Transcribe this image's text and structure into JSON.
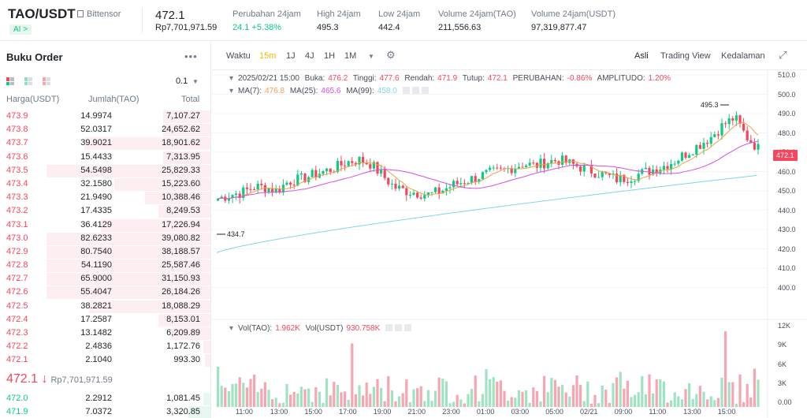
{
  "header": {
    "pair": "TAO/USDT",
    "project": "Bittensor",
    "ai_badge": "AI >",
    "last_price": "472.1",
    "last_price_idr": "Rp7,701,971.59",
    "stats": [
      {
        "label": "Perubahan 24jam",
        "value": "24.1 +5.38%",
        "color": "green"
      },
      {
        "label": "High 24jam",
        "value": "495.3"
      },
      {
        "label": "Low 24jam",
        "value": "442.4"
      },
      {
        "label": "Volume 24jam(TAO)",
        "value": "211,556.63"
      },
      {
        "label": "Volume 24jam(USDT)",
        "value": "97,319,877.47"
      }
    ]
  },
  "orderbook": {
    "title": "Buku Order",
    "more_icon": "more-dots-icon",
    "tick_size": "0.1",
    "columns": [
      "Harga(USDT)",
      "Jumlah(TAO)",
      "Total"
    ],
    "asks": [
      {
        "price": "473.9",
        "amount": "14.9974",
        "total": "7,107.27",
        "depth": 29
      },
      {
        "price": "473.8",
        "amount": "52.0317",
        "total": "24,652.62",
        "depth": 29
      },
      {
        "price": "473.7",
        "amount": "39.9021",
        "total": "18,901.62",
        "depth": 77
      },
      {
        "price": "473.6",
        "amount": "15.4433",
        "total": "7,313.95",
        "depth": 29
      },
      {
        "price": "473.5",
        "amount": "54.5498",
        "total": "25,829.33",
        "depth": 100
      },
      {
        "price": "473.4",
        "amount": "32.1580",
        "total": "15,223.60",
        "depth": 59
      },
      {
        "price": "473.3",
        "amount": "21.9490",
        "total": "10,388.46",
        "depth": 40
      },
      {
        "price": "473.2",
        "amount": "17.4335",
        "total": "8,249.53",
        "depth": 32
      },
      {
        "price": "473.1",
        "amount": "36.4129",
        "total": "17,226.94",
        "depth": 67
      },
      {
        "price": "473.0",
        "amount": "82.6233",
        "total": "39,080.82",
        "depth": 100
      },
      {
        "price": "472.9",
        "amount": "80.7540",
        "total": "38,188.57",
        "depth": 100
      },
      {
        "price": "472.8",
        "amount": "54.1190",
        "total": "25,587.46",
        "depth": 100
      },
      {
        "price": "472.7",
        "amount": "65.9000",
        "total": "31,150.93",
        "depth": 100
      },
      {
        "price": "472.6",
        "amount": "55.4047",
        "total": "26,184.26",
        "depth": 100
      },
      {
        "price": "472.5",
        "amount": "38.2821",
        "total": "18,088.29",
        "depth": 74
      },
      {
        "price": "472.4",
        "amount": "17.2587",
        "total": "8,153.01",
        "depth": 32
      },
      {
        "price": "472.3",
        "amount": "13.1482",
        "total": "6,209.89",
        "depth": 24
      },
      {
        "price": "472.2",
        "amount": "2.4836",
        "total": "1,172.76",
        "depth": 5
      },
      {
        "price": "472.1",
        "amount": "2.1040",
        "total": "993.30",
        "depth": 4
      }
    ],
    "mid_price": "472.1 ↓",
    "mid_price_idr": "Rp7,701,971.59",
    "bids": [
      {
        "price": "472.0",
        "amount": "2.2912",
        "total": "1,081.45",
        "depth": 5
      },
      {
        "price": "471.9",
        "amount": "7.0372",
        "total": "3,320.85",
        "depth": 14
      }
    ]
  },
  "chart": {
    "toolbar": {
      "time_label": "Waktu",
      "intervals": [
        "15m",
        "1J",
        "4J",
        "1H",
        "1M"
      ],
      "active_interval": "15m",
      "views": [
        "Asli",
        "Trading View",
        "Kedalaman"
      ],
      "active_view": "Asli"
    },
    "ohlc_legend": {
      "date": "2025/02/21 15:00",
      "open_label": "Buka:",
      "open": "476.2",
      "high_label": "Tinggi:",
      "high": "477.6",
      "low_label": "Rendah:",
      "low": "471.9",
      "close_label": "Tutup:",
      "close": "472.1",
      "change_label": "PERUBAHAN:",
      "change": "-0.86%",
      "amp_label": "AMPLITUDO:",
      "amp": "1.20%"
    },
    "ma_legend": {
      "ma7_label": "MA(7):",
      "ma7": "476.8",
      "ma25_label": "MA(25):",
      "ma25": "465.6",
      "ma99_label": "MA(99):",
      "ma99": "458.0"
    },
    "vol_legend": {
      "vol_tao_label": "Vol(TAO):",
      "vol_tao": "1.962K",
      "vol_usdt_label": "Vol(USDT)",
      "vol_usdt": "930.758K"
    },
    "price_axis": [
      "510.0",
      "500.0",
      "490.0",
      "480.0",
      "470.0",
      "460.0",
      "450.0",
      "440.0",
      "430.0",
      "420.0",
      "410.0",
      "400.0"
    ],
    "current_price_tag": "472.1",
    "high_marker": "495.3",
    "low_marker": "434.7",
    "volume_axis": [
      "12K",
      "9K",
      "6K",
      "3K",
      "0.00"
    ],
    "time_axis": [
      "11:00",
      "13:00",
      "15:00",
      "17:00",
      "19:00",
      "21:00",
      "23:00",
      "01:00",
      "03:00",
      "05:00",
      "02/21",
      "09:00",
      "11:00",
      "13:00",
      "15:00"
    ],
    "colors": {
      "up": "#0ecb81",
      "down": "#f6465d",
      "ma7": "#f0a04b",
      "ma25": "#d64fe0",
      "ma99": "#7fd6e8"
    }
  }
}
